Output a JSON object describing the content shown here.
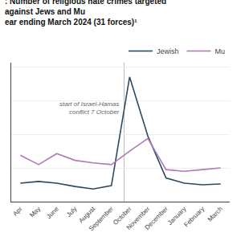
{
  "chart_data": {
    "type": "line",
    "title": ": Number of religious hate crimes targeted against Jews and Mu\near ending March 2024 (31 forces)¹",
    "categories": [
      "Apr",
      "May",
      "June",
      "July",
      "August",
      "September",
      "October",
      "November",
      "December",
      "January",
      "February",
      "March"
    ],
    "series": [
      {
        "name": "Jewish",
        "color": "#2c4a5e",
        "values": [
          22,
          24,
          22,
          18,
          15,
          19,
          148,
          78,
          28,
          22,
          20,
          21
        ]
      },
      {
        "name": "Mu",
        "color": "#b07ab8",
        "values": [
          55,
          44,
          57,
          49,
          46,
          44,
          60,
          75,
          38,
          36,
          38,
          40
        ]
      }
    ],
    "ylim": [
      0,
      165
    ],
    "yticks": [
      0,
      40,
      80,
      120,
      160
    ],
    "grid": true,
    "tick_labels": "x",
    "legend": "upper right",
    "annotations": [
      {
        "text": "start of Israel-Hamas\nconflict 7 October",
        "x": 5.7
      }
    ]
  }
}
